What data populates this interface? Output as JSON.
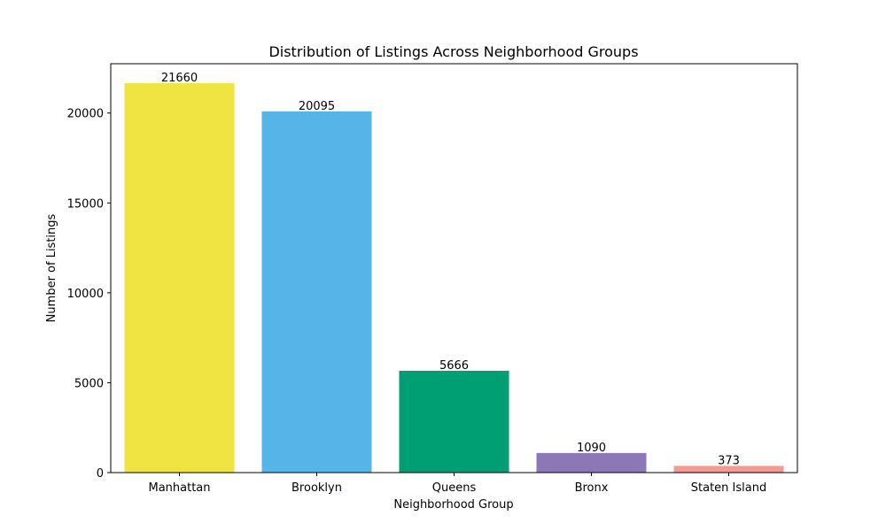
{
  "chart_data": {
    "type": "bar",
    "title": "Distribution of Listings Across Neighborhood Groups",
    "xlabel": "Neighborhood Group",
    "ylabel": "Number of Listings",
    "categories": [
      "Manhattan",
      "Brooklyn",
      "Queens",
      "Bronx",
      "Staten Island"
    ],
    "values": [
      21660,
      20095,
      5666,
      1090,
      373
    ],
    "data_labels": [
      "21660",
      "20095",
      "5666",
      "1090",
      "373"
    ],
    "colors": [
      "#f0e442",
      "#56b4e9",
      "#009e73",
      "#8c78b6",
      "#f39a93"
    ],
    "ylim": [
      0,
      22743
    ],
    "yticks": [
      0,
      5000,
      10000,
      15000,
      20000
    ],
    "ytick_labels": [
      "0",
      "5000",
      "10000",
      "15000",
      "20000"
    ],
    "grid": false,
    "legend": "none"
  }
}
